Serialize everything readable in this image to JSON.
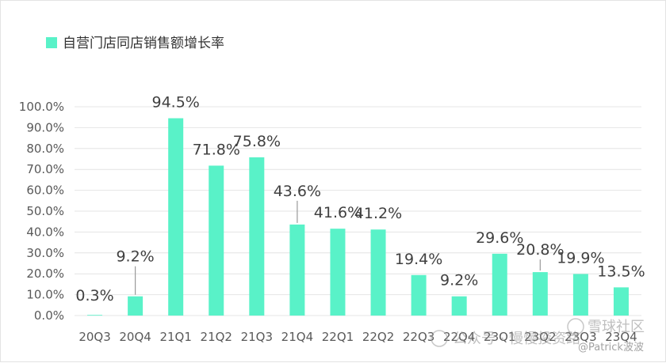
{
  "chart_data": {
    "type": "bar",
    "legend": {
      "label": "自营门店同店销售额增长率",
      "position": "top-left"
    },
    "series": [
      {
        "name": "自营门店同店销售额增长率",
        "color": "#59f2c8",
        "values": [
          0.3,
          9.2,
          94.5,
          71.8,
          75.8,
          43.6,
          41.6,
          41.2,
          19.4,
          9.2,
          29.6,
          20.8,
          19.9,
          13.5
        ]
      }
    ],
    "categories": [
      "20Q3",
      "20Q4",
      "21Q1",
      "21Q2",
      "21Q3",
      "21Q4",
      "22Q1",
      "22Q2",
      "22Q3",
      "22Q4",
      "23Q1",
      "23Q2",
      "23Q3",
      "23Q4"
    ],
    "data_labels": [
      "0.3%",
      "9.2%",
      "94.5%",
      "71.8%",
      "75.8%",
      "43.6%",
      "41.6%",
      "41.2%",
      "19.4%",
      "9.2%",
      "29.6%",
      "20.8%",
      "19.9%",
      "13.5%"
    ],
    "y_ticks": [
      "0.0%",
      "10.0%",
      "20.0%",
      "30.0%",
      "40.0%",
      "50.0%",
      "60.0%",
      "70.0%",
      "80.0%",
      "90.0%",
      "100.0%"
    ],
    "ylim": [
      0,
      100
    ],
    "grid": true,
    "colors": {
      "bar": "#59f2c8",
      "grid": "#e4e4e4",
      "text": "#595959"
    }
  },
  "watermark": {
    "wechat": "公众号 · 慢慢投资路",
    "brand": "雪球社区",
    "handle": "@Patrick波波"
  }
}
